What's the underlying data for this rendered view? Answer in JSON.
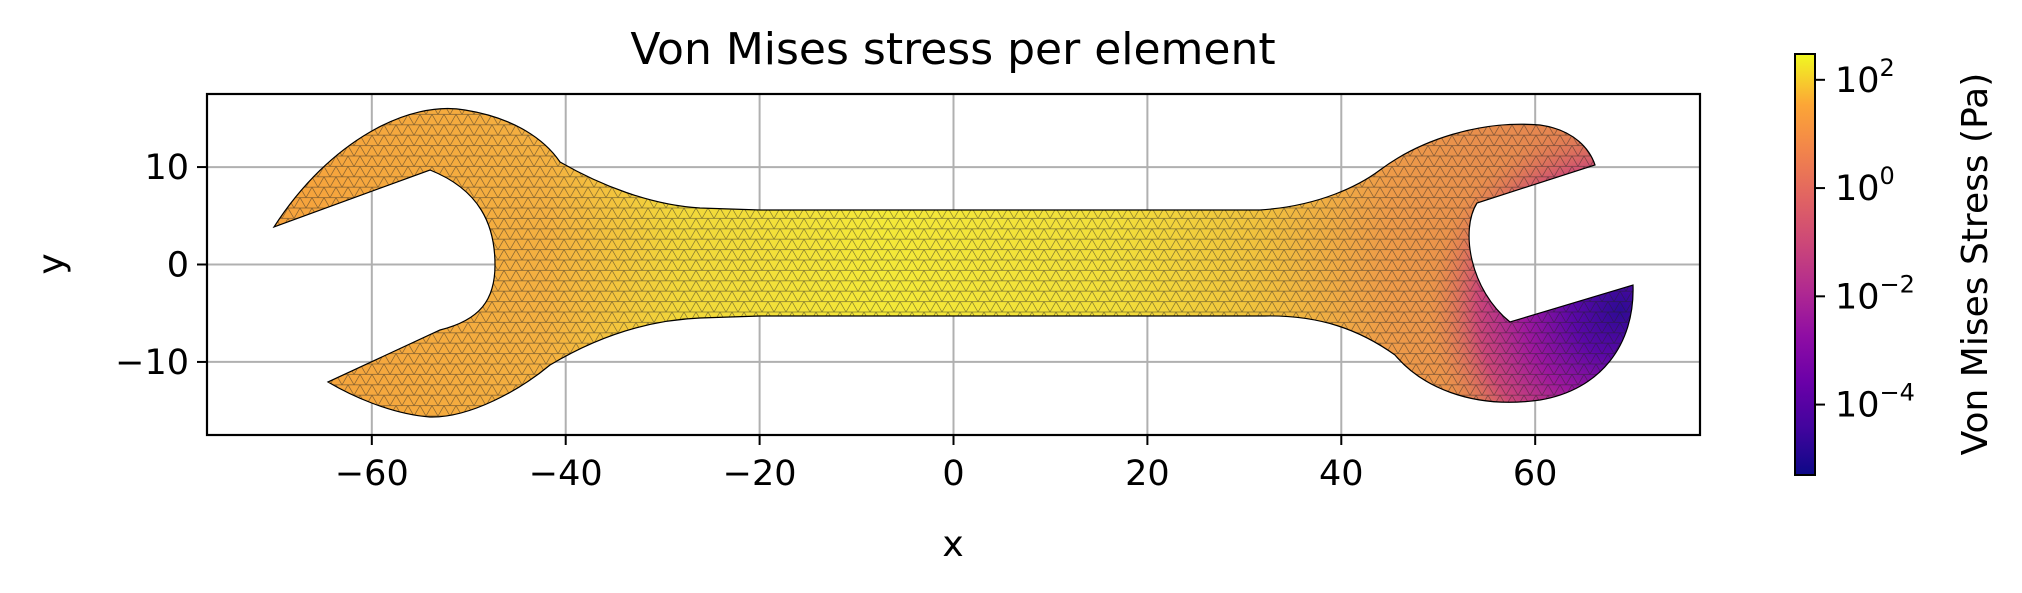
{
  "chart_data": {
    "type": "heatmap",
    "title": "Von Mises stress per element",
    "xlabel": "x",
    "ylabel": "y",
    "xlim": [
      -77,
      77
    ],
    "ylim": [
      -17.5,
      17.5
    ],
    "xticks": [
      -60,
      -40,
      -20,
      0,
      20,
      40,
      60
    ],
    "xtick_labels": [
      "−60",
      "−40",
      "−20",
      "0",
      "20",
      "40",
      "60"
    ],
    "yticks": [
      10,
      0,
      -10
    ],
    "ytick_labels": [
      "10",
      "0",
      "−10"
    ],
    "grid": true,
    "colormap": "plasma",
    "colorbar": {
      "label": "Von Mises Stress (Pa)",
      "scale": "log",
      "range": [
        5e-06,
        300
      ],
      "ticks": [
        {
          "value": 100,
          "base": "10",
          "exp": "2"
        },
        {
          "value": 1,
          "base": "10",
          "exp": "0"
        },
        {
          "value": 0.01,
          "base": "10",
          "exp": "−2"
        },
        {
          "value": 0.0001,
          "base": "10",
          "exp": "−4"
        }
      ]
    },
    "shape": "wrench (triangular mesh)",
    "stress_regions": [
      {
        "region": "central shaft",
        "x_range": [
          -25,
          30
        ],
        "stress_pa": 150
      },
      {
        "region": "left head",
        "x_range": [
          -71,
          -40
        ],
        "stress_pa": 8
      },
      {
        "region": "right head upper",
        "x_range": [
          42,
          65
        ],
        "stress_pa": 3
      },
      {
        "region": "right head lower jaw",
        "x_range": [
          55,
          69
        ],
        "stress_pa": 0.0001
      }
    ]
  }
}
